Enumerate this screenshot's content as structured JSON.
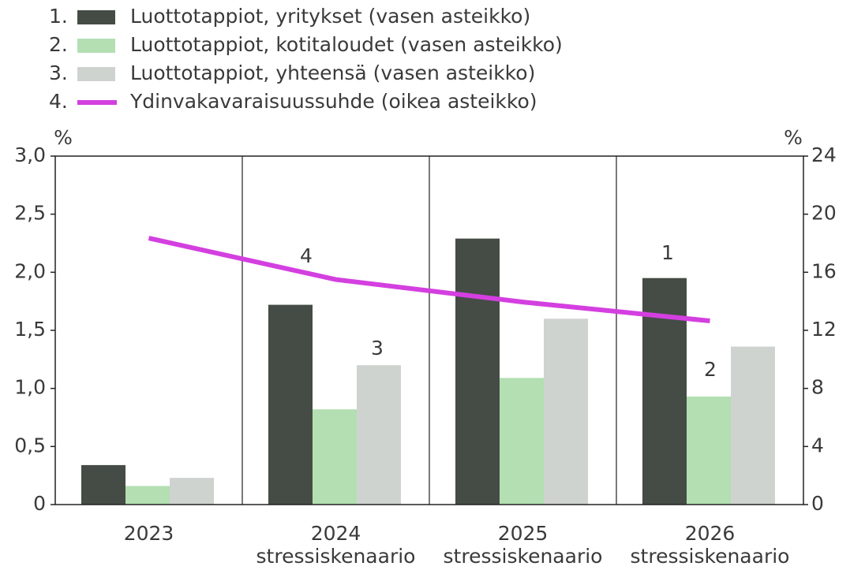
{
  "chart_data": {
    "type": "bar",
    "categories": [
      "2023",
      "2024",
      "2025",
      "2026"
    ],
    "category_sublabels": [
      null,
      "stressiskenaario",
      "stressiskenaario",
      "stressiskenaario"
    ],
    "series": [
      {
        "name": "Luottotappiot, yritykset (vasen asteikko)",
        "number": "1.",
        "color": "#454c45",
        "values": [
          0.34,
          1.72,
          2.29,
          1.95
        ]
      },
      {
        "name": "Luottotappiot, kotitaloudet (vasen asteikko)",
        "number": "2.",
        "color": "#b3dfb3",
        "values": [
          0.16,
          0.82,
          1.09,
          0.93
        ]
      },
      {
        "name": "Luottotappiot, yhteensä (vasen asteikko)",
        "number": "3.",
        "color": "#cfd3d0",
        "values": [
          0.23,
          1.2,
          1.6,
          1.36
        ]
      },
      {
        "name": "Ydinvakavaraisuussuhde (oikea asteikko)",
        "number": "4.",
        "color": "#d43fe0",
        "type": "line",
        "axis": "y2",
        "values": [
          18.35,
          15.5,
          13.95,
          12.65
        ]
      }
    ],
    "ylabel": "%",
    "y2label": "%",
    "ylim": [
      0,
      3
    ],
    "yticks": [
      0,
      {
        "value": 0.5,
        "label": "0,5"
      },
      {
        "value": 1,
        "label": "1,0"
      },
      {
        "value": 1.5,
        "label": "1,5"
      },
      {
        "value": 2,
        "label": "2,0"
      },
      {
        "value": 2.5,
        "label": "2,5"
      },
      {
        "value": 3,
        "label": "3,0"
      }
    ],
    "y2lim": [
      0,
      24
    ],
    "y2ticks": [
      0,
      4,
      8,
      12,
      16,
      20,
      24
    ],
    "annotations": [
      "1",
      "2",
      "3",
      "4"
    ]
  }
}
